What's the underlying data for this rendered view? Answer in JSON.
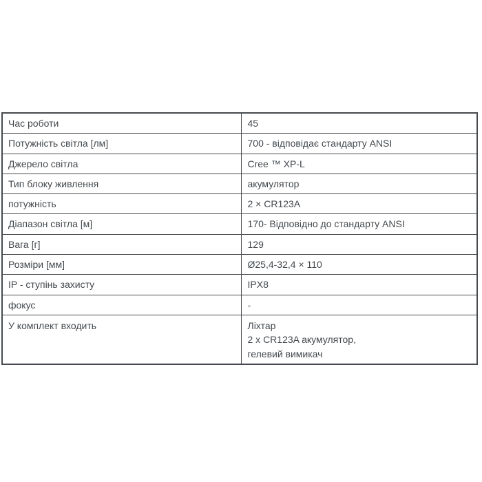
{
  "page": {
    "background_color": "#ffffff",
    "text_color": "#43484d",
    "table_border_color": "#46494d"
  },
  "spec_table": {
    "rows": [
      {
        "label": "Час роботи",
        "value": "45"
      },
      {
        "label": "Потужність світла [лм]",
        "value": "700 - відповідає стандарту ANSI"
      },
      {
        "label": "Джерело світла",
        "value": "Cree ™ XP-L"
      },
      {
        "label": "Тип блоку живлення",
        "value": "акумулятор"
      },
      {
        "label": "потужність",
        "value": "2 × CR123A"
      },
      {
        "label": "Діапазон світла [м]",
        "value": "170- Відповідно до стандарту ANSI"
      },
      {
        "label": "Вага [г]",
        "value": "129"
      },
      {
        "label": "Розміри [мм]",
        "value": "Ø25,4-32,4 × 110"
      },
      {
        "label": "IP - ступінь захисту",
        "value": "IPX8"
      },
      {
        "label": "фокус",
        "value": "-"
      },
      {
        "label": "У комплект входить",
        "value": "Ліхтар\n2 x CR123A акумулятор,\nгелевий вимикач"
      }
    ]
  }
}
